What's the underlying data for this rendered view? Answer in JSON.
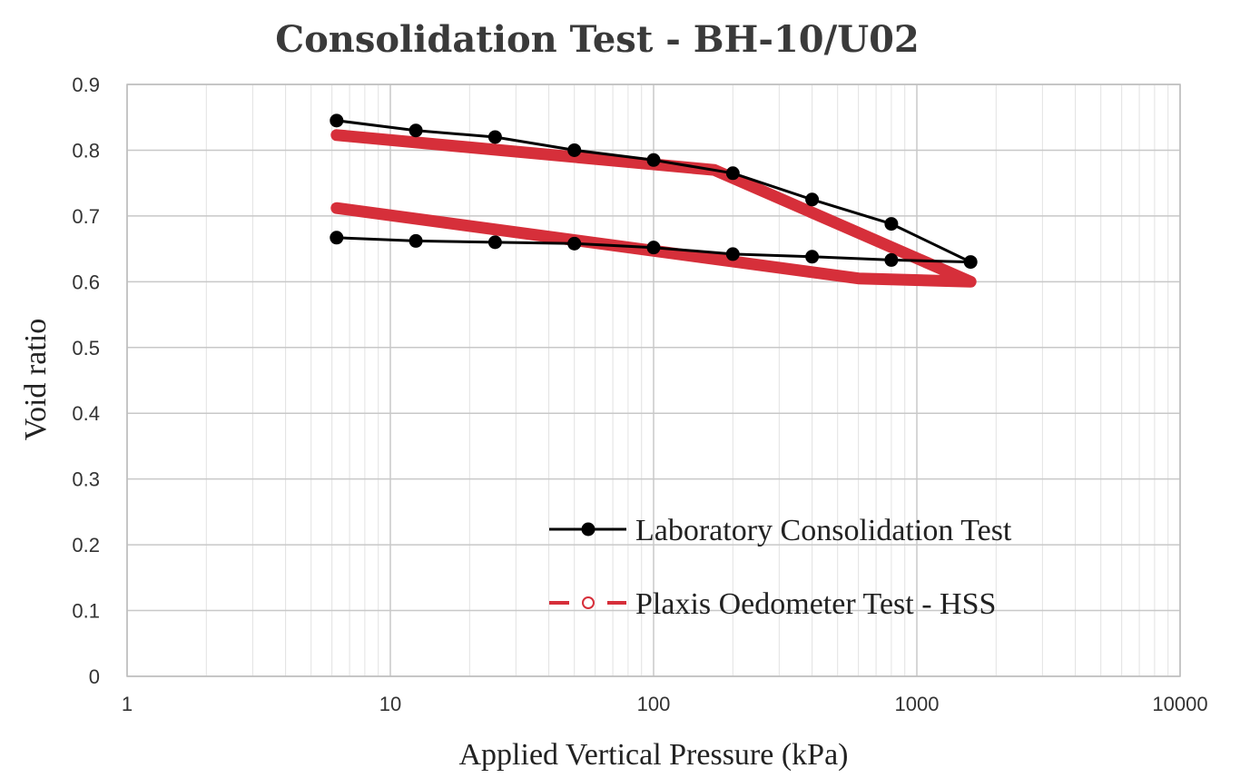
{
  "chart_data": {
    "type": "line",
    "title": "Consolidation Test - BH-10/U02",
    "xlabel": "Applied Vertical Pressure (kPa)",
    "ylabel": "Void ratio",
    "x_scale": "log",
    "xlim": [
      1,
      10000
    ],
    "ylim": [
      0,
      0.9
    ],
    "x_ticks": [
      "1",
      "10",
      "100",
      "1000",
      "10000"
    ],
    "y_ticks": [
      "0",
      "0.1",
      "0.2",
      "0.3",
      "0.4",
      "0.5",
      "0.6",
      "0.7",
      "0.8",
      "0.9"
    ],
    "grid": true,
    "legend_position": "bottom-right",
    "series": [
      {
        "name": "Laboratory Consolidation Test",
        "color": "#000000",
        "marker": "filled-circle",
        "x": [
          6.25,
          12.5,
          25,
          50,
          100,
          200,
          400,
          800,
          1600,
          800,
          400,
          200,
          100,
          50,
          25,
          12.5,
          6.25
        ],
        "y": [
          0.845,
          0.83,
          0.82,
          0.8,
          0.785,
          0.765,
          0.725,
          0.688,
          0.63,
          0.633,
          0.638,
          0.642,
          0.652,
          0.658,
          0.66,
          0.662,
          0.667
        ]
      },
      {
        "name": "Plaxis Oedometer Test - HSS",
        "color": "#d62f3a",
        "marker": "none",
        "x": [
          6.25,
          170,
          1600,
          600,
          6.25
        ],
        "y": [
          0.823,
          0.77,
          0.6,
          0.605,
          0.712
        ]
      }
    ]
  }
}
